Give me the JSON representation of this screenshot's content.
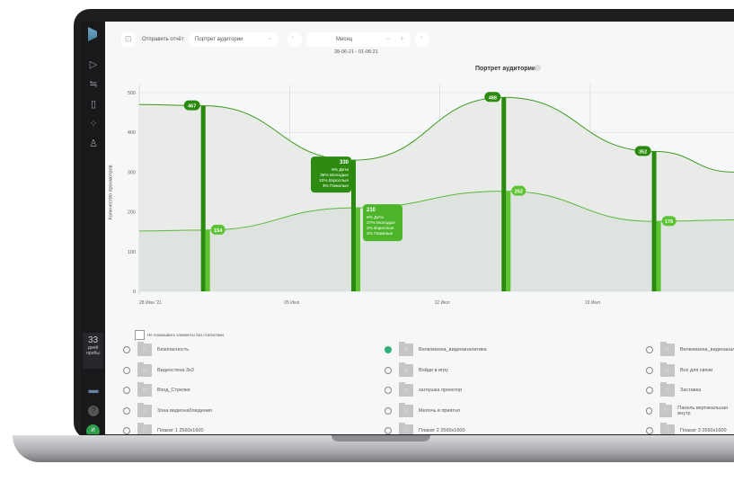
{
  "sidebar": {
    "trial_days": "33",
    "trial_label": "дней пробы",
    "avatar": "И",
    "icons": [
      "logo-icon",
      "play-icon",
      "filter-icon",
      "document-icon",
      "loading-icon",
      "user-icon",
      "monitor-icon",
      "help-icon"
    ]
  },
  "toolbar": {
    "send_report": "Отправить отчёт",
    "report_select": "Портрет аудитории",
    "period": "Месяц",
    "date_range": "28-06-21 - 01-08-21"
  },
  "chart_data": {
    "type": "line",
    "title": "Портрет аудитории",
    "ylabel": "Количество просмотров",
    "ylim": [
      0,
      500
    ],
    "yticks": [
      0,
      100,
      200,
      300,
      400,
      500
    ],
    "xticks": [
      "28 Июн '21",
      "05 Июл",
      "12 Июл",
      "19 Июл"
    ],
    "x": [
      "2021-07-01",
      "2021-07-08",
      "2021-07-15",
      "2021-07-22"
    ],
    "series": [
      {
        "values": [
          467,
          330,
          488,
          352
        ],
        "color": "#2a8a0e"
      },
      {
        "values": [
          154,
          210,
          252,
          176
        ],
        "color": "#5cc332"
      }
    ],
    "tooltips": [
      {
        "value": "330",
        "lines": [
          "8% Дети",
          "36% Молодые",
          "12% Взрослые",
          "3% Пожилые"
        ]
      },
      {
        "value": "210",
        "lines": [
          "9% Дети",
          "27% Молодые",
          "2% Взрослые",
          "2% Пожилые"
        ]
      }
    ]
  },
  "filter": {
    "hide_empty_label": "Не показывать элементы без статистики"
  },
  "items": [
    {
      "label": "Безопасность",
      "letter": "Б",
      "checked": false
    },
    {
      "label": "Велкомзона_видеоаналитика",
      "letter": "В",
      "checked": true
    },
    {
      "label": "Велкомзона_видеоаналитика",
      "letter": "В",
      "checked": false
    },
    {
      "label": "Видеостена 3x3",
      "letter": "В",
      "checked": false
    },
    {
      "label": "Войди в игру",
      "letter": "В",
      "checked": false
    },
    {
      "label": "Все для связи",
      "letter": "В",
      "checked": false
    },
    {
      "label": "Вход_Стрелки",
      "letter": "В",
      "checked": false
    },
    {
      "label": "заглушка проектор",
      "letter": "з",
      "checked": false
    },
    {
      "label": "Заставка",
      "letter": "З",
      "checked": false
    },
    {
      "label": "Зона видеонаблюдения",
      "letter": "З",
      "checked": false
    },
    {
      "label": "Мелочь в приятно",
      "letter": "М",
      "checked": false
    },
    {
      "label": "Панель вертикальная внутр",
      "letter": "П",
      "checked": false
    },
    {
      "label": "Плакат 1 2560x1600",
      "letter": "П",
      "checked": false
    },
    {
      "label": "Плакат 2 2560x1600",
      "letter": "П",
      "checked": false
    },
    {
      "label": "Плакат 3 2560x1600",
      "letter": "П",
      "checked": false
    }
  ]
}
